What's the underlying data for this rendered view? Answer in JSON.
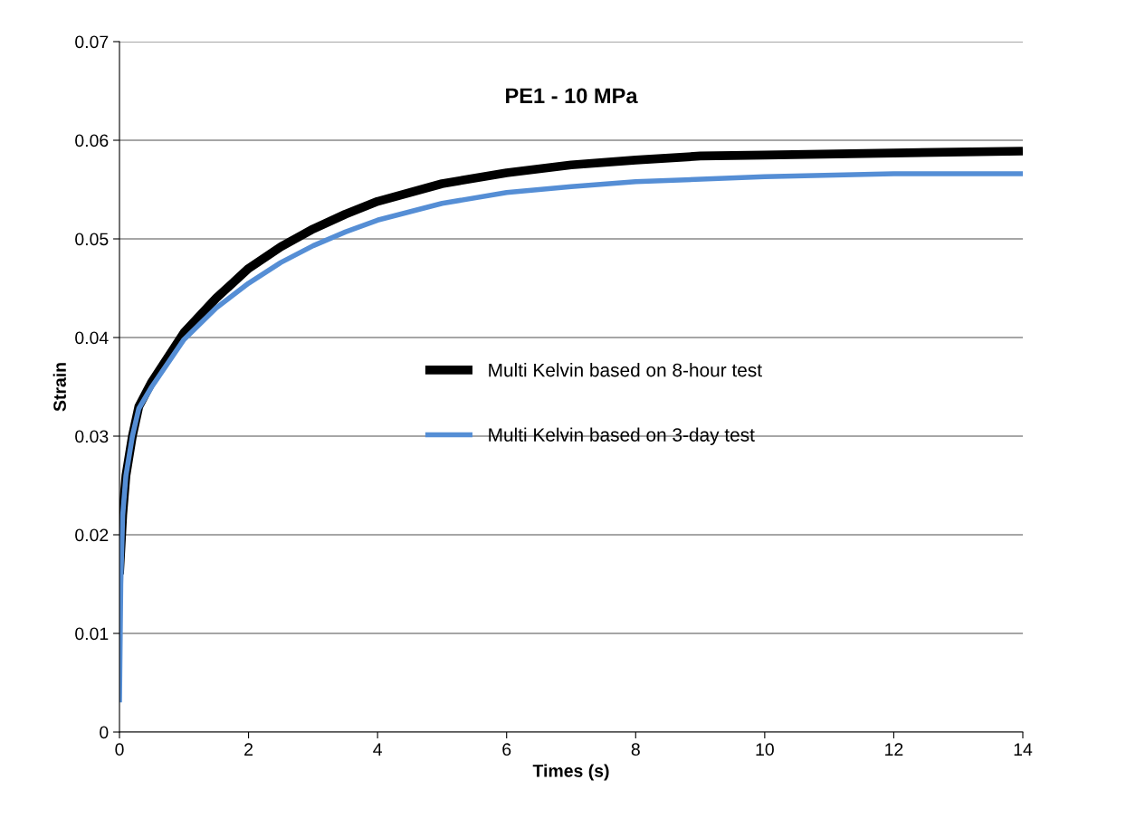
{
  "chart_data": {
    "type": "line",
    "title": "PE1 - 10 MPa",
    "xlabel": "Times (s)",
    "ylabel": "Strain",
    "xlim": [
      0,
      14
    ],
    "xticks": [
      0,
      2,
      4,
      6,
      8,
      10,
      12,
      14
    ],
    "ylim": [
      0,
      0.07
    ],
    "yticks": [
      0,
      0.01,
      0.02,
      0.03,
      0.04,
      0.05,
      0.06,
      0.07
    ],
    "grid": "y",
    "legend": "center",
    "marker": "none",
    "line_style": "solid",
    "series": [
      {
        "name": "Multi Kelvin based on 8-hour test",
        "color": "#000000",
        "x": [
          0,
          0.05,
          0.1,
          0.2,
          0.3,
          0.5,
          1,
          1.5,
          2,
          2.5,
          3,
          3.5,
          4,
          5,
          6,
          7,
          8,
          9,
          10,
          12,
          14
        ],
        "values": [
          0.016,
          0.022,
          0.026,
          0.03,
          0.033,
          0.0355,
          0.0405,
          0.044,
          0.047,
          0.0492,
          0.051,
          0.0525,
          0.0538,
          0.0556,
          0.0567,
          0.0575,
          0.058,
          0.0584,
          0.0585,
          0.0587,
          0.0589
        ]
      },
      {
        "name": "Multi Kelvin based on 3-day test",
        "color": "#558ed5",
        "x": [
          0,
          0.02,
          0.05,
          0.1,
          0.2,
          0.3,
          0.5,
          1,
          1.5,
          2,
          2.5,
          3,
          3.5,
          4,
          5,
          6,
          7,
          8,
          10,
          12,
          14
        ],
        "values": [
          0.003,
          0.015,
          0.022,
          0.026,
          0.03,
          0.0328,
          0.035,
          0.0398,
          0.043,
          0.0455,
          0.0476,
          0.0493,
          0.0507,
          0.0519,
          0.0536,
          0.0547,
          0.0553,
          0.0558,
          0.0563,
          0.0566,
          0.0566
        ]
      }
    ]
  }
}
